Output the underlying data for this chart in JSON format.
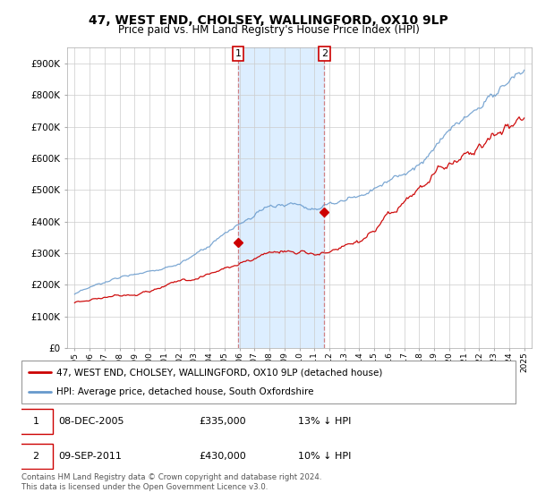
{
  "title": "47, WEST END, CHOLSEY, WALLINGFORD, OX10 9LP",
  "subtitle": "Price paid vs. HM Land Registry's House Price Index (HPI)",
  "ylim": [
    0,
    950000
  ],
  "yticks": [
    0,
    100000,
    200000,
    300000,
    400000,
    500000,
    600000,
    700000,
    800000,
    900000
  ],
  "line_color_property": "#cc0000",
  "line_color_hpi": "#6699cc",
  "shade_color": "#ddeeff",
  "marker1_year": 2005.92,
  "marker1_value": 335000,
  "marker2_year": 2011.67,
  "marker2_value": 430000,
  "legend_property": "47, WEST END, CHOLSEY, WALLINGFORD, OX10 9LP (detached house)",
  "legend_hpi": "HPI: Average price, detached house, South Oxfordshire",
  "table_rows": [
    {
      "num": "1",
      "date": "08-DEC-2005",
      "price": "£335,000",
      "hpi": "13% ↓ HPI"
    },
    {
      "num": "2",
      "date": "09-SEP-2011",
      "price": "£430,000",
      "hpi": "10% ↓ HPI"
    }
  ],
  "footer": "Contains HM Land Registry data © Crown copyright and database right 2024.\nThis data is licensed under the Open Government Licence v3.0.",
  "background_color": "#ffffff",
  "grid_color": "#cccccc",
  "xstart": 1995,
  "xend": 2025
}
